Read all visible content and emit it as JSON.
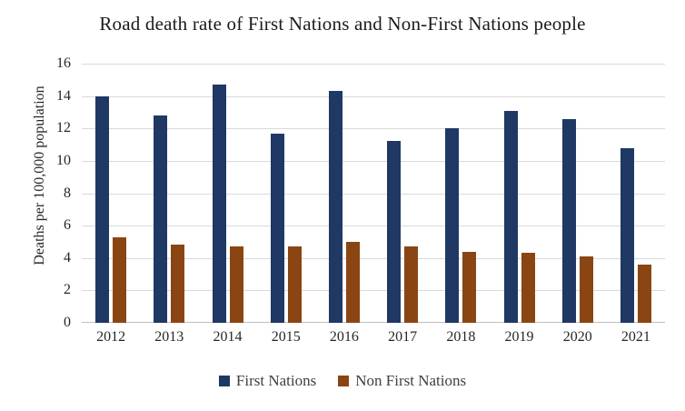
{
  "chart_data": {
    "type": "bar",
    "title": "Road death rate of First Nations and Non-First Nations people",
    "xlabel": "",
    "ylabel": "Deaths per 100,000 population",
    "categories": [
      "2012",
      "2013",
      "2014",
      "2015",
      "2016",
      "2017",
      "2018",
      "2019",
      "2020",
      "2021"
    ],
    "series": [
      {
        "name": "First Nations",
        "color": "#1F3864",
        "values": [
          14.0,
          12.8,
          14.7,
          11.7,
          14.3,
          11.2,
          12.0,
          13.1,
          12.6,
          10.8
        ]
      },
      {
        "name": "Non First Nations",
        "color": "#8B4513",
        "values": [
          5.3,
          4.8,
          4.7,
          4.7,
          5.0,
          4.7,
          4.4,
          4.3,
          4.1,
          3.6
        ]
      }
    ],
    "ylim": [
      0,
      16
    ],
    "ytick_step": 2,
    "ytick_labels": [
      "0",
      "2",
      "4",
      "6",
      "8",
      "10",
      "12",
      "14",
      "16"
    ],
    "grid": "horizontal",
    "gridline_color": "#D9D9D9",
    "axis_line_color": "#BFBFBF",
    "text_color": "#262626",
    "legend_position": "bottom",
    "background_color": "#FFFFFF"
  }
}
